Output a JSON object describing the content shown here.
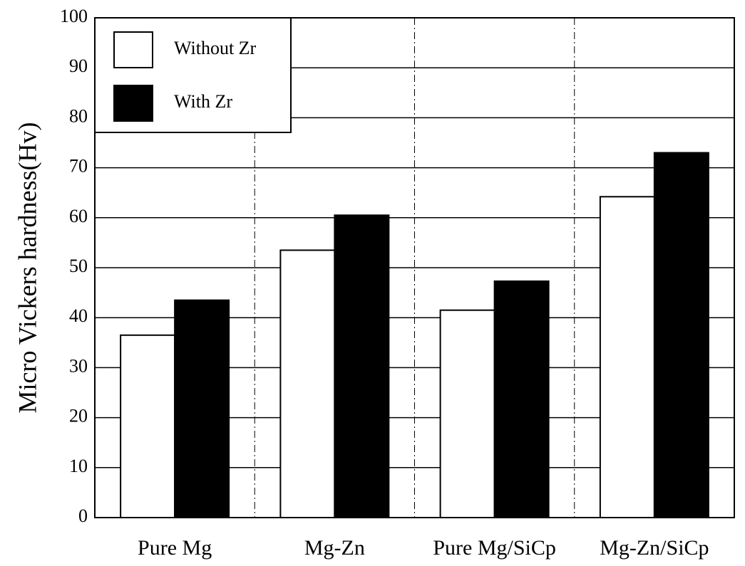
{
  "chart_data": {
    "type": "bar",
    "y_label": "Micro Vickers hardness(Hv)",
    "categories": [
      "Pure Mg",
      "Mg-Zn",
      "Pure Mg/SiCp",
      "Mg-Zn/SiCp"
    ],
    "series": [
      {
        "name": "Without Zr",
        "color": "#ffffff",
        "values": [
          36.5,
          53.5,
          41.5,
          64.2
        ]
      },
      {
        "name": "With Zr",
        "color": "#000000",
        "values": [
          43.5,
          60.5,
          47.3,
          73
        ]
      }
    ],
    "ylim": [
      0,
      100
    ],
    "yticks": [
      0,
      10,
      20,
      30,
      40,
      50,
      60,
      70,
      80,
      90,
      100
    ],
    "grid": true,
    "legend": "upper left"
  }
}
